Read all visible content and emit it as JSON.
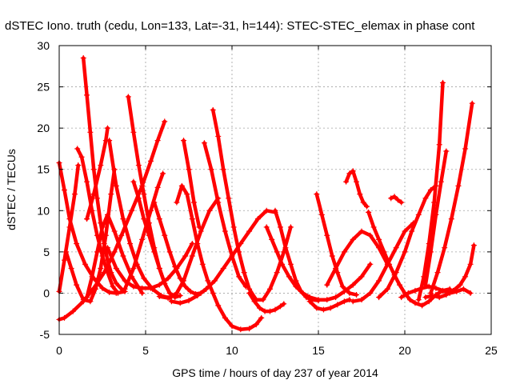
{
  "chart_data": {
    "type": "line",
    "title": "dSTEC Iono. truth (cedu, Lon=133, Lat=-31, h=144): STEC-STEC_elemax in phase cont",
    "xlabel": "GPS time / hours of day 237 of year 2014",
    "ylabel": "dSTEC  / TECUs",
    "xlim": [
      0,
      25
    ],
    "ylim": [
      -5,
      30
    ],
    "xticks": [
      0,
      5,
      10,
      15,
      20,
      25
    ],
    "yticks": [
      -5,
      0,
      5,
      10,
      15,
      20,
      25,
      30
    ],
    "grid": true,
    "legend": "none",
    "color": "#ff0000",
    "marker": "+",
    "series": [
      {
        "x": [
          0.0,
          0.3,
          0.8,
          1.4,
          2.0,
          2.6,
          3.2,
          3.6,
          4.2,
          4.8,
          5.3,
          5.7,
          6.1
        ],
        "y": [
          -3.2,
          -3.0,
          -2.2,
          -1.0,
          0.6,
          2.5,
          5.0,
          7.0,
          10.0,
          13.0,
          16.0,
          18.5,
          20.8
        ]
      },
      {
        "x": [
          0.0,
          0.3,
          0.6,
          1.0,
          1.5,
          2.0,
          2.5,
          2.9,
          3.3,
          3.8
        ],
        "y": [
          15.8,
          12.5,
          9.0,
          6.0,
          3.5,
          1.8,
          0.6,
          0.1,
          0.0,
          0.2
        ]
      },
      {
        "x": [
          0.0,
          0.3,
          0.6,
          0.9,
          1.1
        ],
        "y": [
          0.2,
          4.0,
          8.0,
          12.0,
          15.5
        ]
      },
      {
        "x": [
          1.05,
          1.3,
          1.6,
          1.9,
          2.2,
          2.5,
          2.8,
          3.1,
          3.4
        ],
        "y": [
          17.5,
          16.5,
          13.5,
          10.0,
          7.0,
          4.5,
          2.5,
          0.8,
          0.0
        ]
      },
      {
        "x": [
          1.4,
          1.6,
          1.8,
          2.0,
          2.2,
          2.4,
          2.6,
          2.8,
          3.0,
          3.3,
          3.7
        ],
        "y": [
          28.5,
          24.0,
          19.5,
          15.0,
          11.5,
          8.5,
          6.0,
          4.0,
          2.5,
          1.2,
          0.3
        ]
      },
      {
        "x": [
          0.4,
          0.7,
          1.0,
          1.4,
          1.8,
          2.1,
          2.4,
          2.7,
          3.0,
          3.2
        ],
        "y": [
          5.0,
          3.0,
          1.0,
          -0.8,
          -1.0,
          0.5,
          3.0,
          7.0,
          12.0,
          15.0
        ]
      },
      {
        "x": [
          1.6,
          2.0,
          2.4,
          2.7,
          2.8
        ],
        "y": [
          9.0,
          12.0,
          15.5,
          18.5,
          20.0
        ]
      },
      {
        "x": [
          1.6,
          1.9,
          2.2,
          2.5,
          2.8,
          3.2,
          3.7,
          4.2,
          4.8
        ],
        "y": [
          -0.5,
          2.0,
          5.0,
          8.0,
          9.5,
          7.5,
          4.5,
          2.0,
          0.0
        ]
      },
      {
        "x": [
          2.9,
          3.3,
          3.7,
          4.1,
          4.5,
          4.9,
          5.4,
          5.9,
          6.4
        ],
        "y": [
          18.5,
          13.0,
          9.0,
          6.0,
          3.5,
          1.8,
          0.5,
          -0.3,
          -0.6
        ]
      },
      {
        "x": [
          3.8,
          4.3,
          4.8,
          5.3,
          5.7,
          6.0
        ],
        "y": [
          0.5,
          3.0,
          6.5,
          10.0,
          12.8,
          14.5
        ]
      },
      {
        "x": [
          4.0,
          4.3,
          4.6,
          4.9,
          5.2,
          5.5,
          5.8,
          6.1,
          6.4
        ],
        "y": [
          23.8,
          19.5,
          15.5,
          12.0,
          8.5,
          5.5,
          3.0,
          1.2,
          0.0
        ]
      },
      {
        "x": [
          4.3,
          4.6,
          4.9,
          5.2,
          5.5,
          5.8,
          6.1,
          6.4,
          6.7,
          7.0
        ],
        "y": [
          13.5,
          11.5,
          9.0,
          7.0,
          5.0,
          3.0,
          1.2,
          0.0,
          -0.5,
          -0.3
        ]
      },
      {
        "x": [
          2.8,
          3.3,
          3.8,
          4.3,
          4.8,
          5.3,
          5.8,
          6.3,
          6.8,
          7.3,
          7.7
        ],
        "y": [
          5.5,
          3.0,
          1.5,
          0.8,
          0.6,
          0.6,
          1.0,
          1.8,
          3.0,
          4.5,
          6.0
        ]
      },
      {
        "x": [
          5.5,
          5.8,
          6.1,
          6.4,
          6.7,
          7.0,
          7.3,
          7.6,
          7.9,
          8.2,
          8.5
        ],
        "y": [
          11.0,
          9.0,
          7.0,
          5.0,
          3.2,
          1.8,
          0.8,
          0.2,
          -0.1,
          0.0,
          0.5
        ]
      },
      {
        "x": [
          5.8,
          6.3,
          6.8,
          7.2,
          7.7,
          8.2,
          8.7,
          9.2
        ],
        "y": [
          -0.4,
          -0.6,
          0.0,
          1.5,
          4.5,
          7.5,
          10.0,
          11.5
        ]
      },
      {
        "x": [
          6.8,
          7.1,
          7.4,
          7.7,
          8.0,
          8.3,
          8.6,
          8.9,
          9.2,
          9.6,
          10.0,
          10.5,
          11.0,
          11.4,
          11.7
        ],
        "y": [
          11.0,
          13.0,
          12.0,
          9.0,
          6.0,
          3.5,
          1.5,
          0.0,
          -1.5,
          -3.0,
          -4.0,
          -4.4,
          -4.3,
          -3.8,
          -3.0
        ]
      },
      {
        "x": [
          7.2,
          7.5,
          7.8,
          8.1
        ],
        "y": [
          18.5,
          15.0,
          11.0,
          8.0
        ]
      },
      {
        "x": [
          8.4,
          8.8,
          9.2,
          9.6,
          10.0,
          10.4,
          10.8
        ],
        "y": [
          18.2,
          15.0,
          11.0,
          7.5,
          4.5,
          2.0,
          0.8
        ]
      },
      {
        "x": [
          8.9,
          9.2,
          9.5,
          9.8,
          10.1,
          10.4,
          10.7,
          11.0,
          11.4,
          11.8,
          12.2,
          12.6,
          13.0,
          13.4
        ],
        "y": [
          22.2,
          19.0,
          15.0,
          11.5,
          8.0,
          5.0,
          2.5,
          0.5,
          -0.8,
          -0.8,
          0.5,
          2.5,
          5.0,
          8.0
        ]
      },
      {
        "x": [
          6.5,
          7.0,
          7.5,
          8.0,
          8.5,
          9.0,
          9.5,
          10.0,
          10.5,
          11.0,
          11.5,
          12.0,
          12.5
        ],
        "y": [
          -1.0,
          -1.2,
          -0.9,
          -0.3,
          0.5,
          1.5,
          3.0,
          4.5,
          6.0,
          7.5,
          9.0,
          10.0,
          9.8
        ]
      },
      {
        "x": [
          12.0,
          12.3,
          12.6,
          12.9,
          13.3,
          13.7,
          14.1,
          14.5,
          15.0,
          15.5,
          16.0,
          16.5,
          17.0,
          17.5,
          18.0
        ],
        "y": [
          8.0,
          6.5,
          5.0,
          3.5,
          2.0,
          0.8,
          0.0,
          -0.5,
          -0.8,
          -0.8,
          -0.5,
          0.2,
          1.0,
          2.0,
          3.5
        ]
      },
      {
        "x": [
          12.5,
          12.8,
          13.1,
          13.4,
          13.7,
          14.0,
          14.3,
          14.6,
          15.0
        ],
        "y": [
          10.0,
          8.0,
          5.5,
          3.5,
          1.5,
          0.2,
          -0.5,
          -0.8,
          -0.9
        ]
      },
      {
        "x": [
          11.0,
          11.3,
          11.6,
          11.9,
          12.2,
          12.5,
          12.8,
          13.0
        ],
        "y": [
          0.0,
          -1.0,
          -1.8,
          -2.2,
          -2.2,
          -2.0,
          -1.6,
          -1.3
        ]
      },
      {
        "x": [
          14.9,
          15.2,
          15.5,
          15.8,
          16.1,
          16.4,
          16.8,
          17.2
        ],
        "y": [
          12.0,
          9.5,
          7.0,
          4.5,
          2.5,
          0.8,
          0.0,
          -0.2
        ]
      },
      {
        "x": [
          14.5,
          14.9,
          15.3,
          15.7,
          16.1,
          16.5,
          16.8
        ],
        "y": [
          -1.0,
          -1.8,
          -2.0,
          -1.8,
          -1.4,
          -1.0,
          -0.8
        ]
      },
      {
        "x": [
          15.5,
          16.0,
          16.5,
          17.0,
          17.5,
          18.0,
          18.5,
          19.0
        ],
        "y": [
          1.0,
          3.0,
          5.0,
          6.5,
          7.5,
          7.0,
          5.5,
          3.5
        ]
      },
      {
        "x": [
          16.6,
          16.8,
          17.0,
          17.2,
          17.4,
          17.6,
          17.8
        ],
        "y": [
          13.5,
          14.5,
          14.8,
          13.5,
          12.0,
          11.0,
          10.5
        ]
      },
      {
        "x": [
          17.9,
          18.2,
          18.5,
          18.8,
          19.1,
          19.4,
          19.7,
          20.0,
          20.3,
          20.6,
          21.0,
          21.4,
          21.8,
          22.2,
          22.6
        ],
        "y": [
          9.8,
          8.0,
          6.5,
          5.0,
          3.5,
          2.2,
          1.0,
          0.0,
          -0.8,
          -1.2,
          -1.5,
          -1.0,
          -0.2,
          0.3,
          0.5
        ]
      },
      {
        "x": [
          17.0,
          17.5,
          18.0,
          18.5,
          19.0,
          19.5,
          20.0,
          20.5
        ],
        "y": [
          -1.0,
          -0.8,
          0.0,
          1.5,
          3.5,
          5.5,
          7.5,
          8.5
        ]
      },
      {
        "x": [
          19.2,
          19.4,
          19.6,
          19.8
        ],
        "y": [
          11.5,
          11.7,
          11.3,
          11.0
        ]
      },
      {
        "x": [
          18.5,
          19.0,
          19.5,
          20.0,
          20.4,
          20.8,
          21.2,
          21.5,
          21.8
        ],
        "y": [
          -0.5,
          0.5,
          2.5,
          5.0,
          7.5,
          9.5,
          11.5,
          12.5,
          13.0
        ]
      },
      {
        "x": [
          19.8,
          20.2,
          20.6,
          21.0,
          21.4,
          21.8,
          22.2,
          22.6,
          23.0,
          23.4,
          23.8
        ],
        "y": [
          -0.5,
          0.0,
          0.3,
          0.6,
          0.8,
          0.6,
          0.3,
          0.0,
          0.2,
          0.5,
          0.0
        ]
      },
      {
        "x": [
          20.8,
          21.1,
          21.4,
          21.7,
          22.0,
          22.2
        ],
        "y": [
          -0.8,
          2.0,
          6.0,
          11.0,
          18.0,
          25.5
        ]
      },
      {
        "x": [
          21.2,
          21.5,
          21.8,
          22.1,
          22.4
        ],
        "y": [
          1.0,
          5.0,
          9.5,
          13.5,
          17.2
        ]
      },
      {
        "x": [
          21.5,
          21.9,
          22.3,
          22.7,
          23.1,
          23.5,
          23.9
        ],
        "y": [
          0.0,
          2.5,
          5.5,
          9.0,
          13.0,
          17.5,
          23.0
        ]
      },
      {
        "x": [
          21.2,
          21.6,
          22.0,
          22.4,
          22.8,
          23.2,
          23.5,
          23.8,
          24.0
        ],
        "y": [
          -0.5,
          -0.3,
          -0.5,
          -0.2,
          0.3,
          1.0,
          2.0,
          3.5,
          5.8
        ]
      }
    ]
  }
}
